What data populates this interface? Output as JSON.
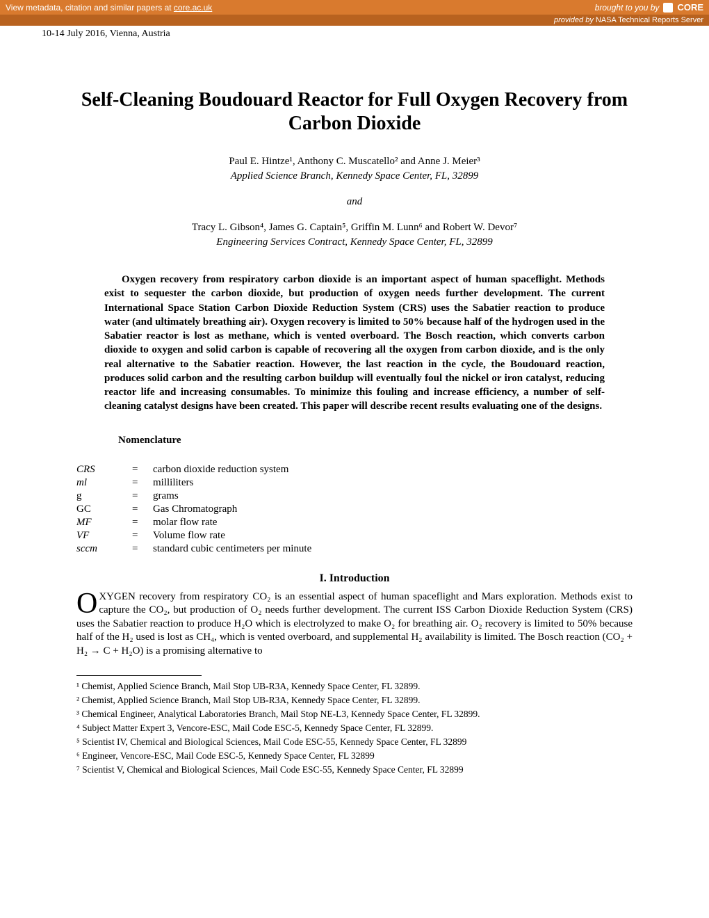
{
  "banner": {
    "left_text": "View metadata, citation and similar papers at ",
    "left_link": "core.ac.uk",
    "brought_by": "brought to you by",
    "core_label": "CORE",
    "provided_by_prefix": "provided by ",
    "provided_by": "NASA Technical Reports Server"
  },
  "conference_line": "10-14 July 2016, Vienna, Austria",
  "title": "Self-Cleaning Boudouard Reactor for Full Oxygen Recovery from Carbon Dioxide",
  "authors_group1": "Paul E. Hintze¹, Anthony C. Muscatello² and Anne J. Meier³",
  "affiliation1": "Applied Science Branch, Kennedy Space Center, FL, 32899",
  "connector": "and",
  "authors_group2": "Tracy L. Gibson⁴, James G. Captain⁵, Griffin M. Lunn⁶ and Robert W. Devor⁷",
  "affiliation2": "Engineering Services Contract, Kennedy Space Center, FL, 32899",
  "abstract": "Oxygen recovery from respiratory carbon dioxide is an important aspect of human spaceflight. Methods exist to sequester the carbon dioxide, but production of oxygen needs further development. The current International Space Station Carbon Dioxide Reduction System (CRS) uses the Sabatier reaction to produce water (and ultimately breathing air). Oxygen recovery is limited to 50% because half of the hydrogen used in the Sabatier reactor is lost as methane, which is vented overboard. The Bosch reaction, which converts carbon dioxide to oxygen and solid carbon is capable of recovering all the oxygen from carbon dioxide, and is the only real alternative to the Sabatier reaction. However, the last reaction in the cycle, the Boudouard reaction, produces solid carbon and the resulting carbon buildup will eventually foul the nickel or iron catalyst, reducing reactor life and increasing consumables. To minimize this fouling and increase efficiency, a number of self-cleaning catalyst designs have been created.  This paper will describe recent results evaluating one of the designs.",
  "nomenclature_heading": "Nomenclature",
  "nomenclature": [
    {
      "sym": "CRS",
      "style": "italic",
      "def": "carbon dioxide reduction system"
    },
    {
      "sym": "ml",
      "style": "italic",
      "def": "milliliters"
    },
    {
      "sym": "g",
      "style": "roman",
      "def": "grams"
    },
    {
      "sym": "GC",
      "style": "roman",
      "def": "Gas Chromatograph"
    },
    {
      "sym": "MF",
      "style": "italic",
      "def": "molar flow rate"
    },
    {
      "sym": "VF",
      "style": "italic",
      "def": "Volume flow rate"
    },
    {
      "sym": "sccm",
      "style": "italic",
      "def": "standard cubic centimeters per minute"
    }
  ],
  "section1_heading": "I.   Introduction",
  "intro_dropcap": "O",
  "intro_text": "XYGEN recovery from respiratory CO₂ is an essential aspect of human spaceflight and Mars exploration. Methods exist to capture the CO₂, but production of O₂ needs further development. The current ISS Carbon Dioxide Reduction System (CRS) uses the Sabatier reaction to produce H₂O which is electrolyzed to make O₂ for breathing air. O₂ recovery is limited to 50% because half of the H₂ used is lost as CH₄, which is vented overboard, and supplemental H₂ availability is limited. The Bosch reaction (CO₂ + H₂ → C + H₂O) is a promising alternative to",
  "footnotes": [
    "¹ Chemist, Applied Science Branch, Mail Stop UB-R3A, Kennedy Space Center, FL 32899.",
    "² Chemist, Applied Science Branch, Mail Stop UB-R3A, Kennedy Space Center, FL 32899.",
    "³ Chemical Engineer, Analytical Laboratories Branch, Mail Stop NE-L3, Kennedy Space Center, FL 32899.",
    "⁴ Subject Matter Expert 3, Vencore-ESC, Mail Code ESC-5, Kennedy Space Center, FL 32899.",
    "⁵ Scientist  IV, Chemical and Biological Sciences, Mail Code ESC-55, Kennedy Space Center, FL 32899",
    "⁶ Engineer, Vencore-ESC, Mail Code ESC-5, Kennedy Space Center, FL 32899",
    "⁷ Scientist  V, Chemical and Biological Sciences, Mail Code ESC-55, Kennedy Space Center, FL 32899"
  ],
  "colors": {
    "banner_bg": "#d97a2e",
    "subbanner_bg": "#b8621f",
    "banner_text": "#ffffff",
    "page_bg": "#ffffff",
    "text": "#000000"
  }
}
